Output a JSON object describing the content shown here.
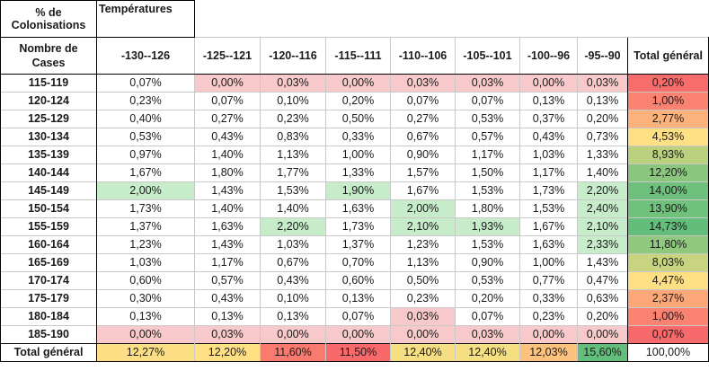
{
  "corner_label": "% de Colonisations",
  "column_field_label": "Températures",
  "row_field_label": "Nombre de Cases",
  "columns": [
    "-130--126",
    "-125--121",
    "-120--116",
    "-115--111",
    "-110--106",
    "-105--101",
    "-100--96",
    "-95--90",
    "Total général"
  ],
  "rows": [
    {
      "label": "115-119",
      "values": [
        "0,07%",
        "0,00%",
        "0,03%",
        "0,00%",
        "0,03%",
        "0,03%",
        "0,00%",
        "0,03%",
        "0,20%"
      ]
    },
    {
      "label": "120-124",
      "values": [
        "0,23%",
        "0,07%",
        "0,10%",
        "0,20%",
        "0,07%",
        "0,07%",
        "0,13%",
        "0,13%",
        "1,00%"
      ]
    },
    {
      "label": "125-129",
      "values": [
        "0,40%",
        "0,27%",
        "0,23%",
        "0,50%",
        "0,27%",
        "0,53%",
        "0,37%",
        "0,20%",
        "2,77%"
      ]
    },
    {
      "label": "130-134",
      "values": [
        "0,53%",
        "0,43%",
        "0,83%",
        "0,33%",
        "0,67%",
        "0,57%",
        "0,43%",
        "0,73%",
        "4,53%"
      ]
    },
    {
      "label": "135-139",
      "values": [
        "0,97%",
        "1,40%",
        "1,13%",
        "1,00%",
        "0,90%",
        "1,17%",
        "1,03%",
        "1,33%",
        "8,93%"
      ]
    },
    {
      "label": "140-144",
      "values": [
        "1,67%",
        "1,80%",
        "1,77%",
        "1,33%",
        "1,57%",
        "1,50%",
        "1,17%",
        "1,40%",
        "12,20%"
      ]
    },
    {
      "label": "145-149",
      "values": [
        "2,00%",
        "1,43%",
        "1,53%",
        "1,90%",
        "1,67%",
        "1,53%",
        "1,73%",
        "2,20%",
        "14,00%"
      ]
    },
    {
      "label": "150-154",
      "values": [
        "1,73%",
        "1,40%",
        "1,40%",
        "1,63%",
        "2,00%",
        "1,80%",
        "1,53%",
        "2,40%",
        "13,90%"
      ]
    },
    {
      "label": "155-159",
      "values": [
        "1,37%",
        "1,63%",
        "2,20%",
        "1,73%",
        "2,10%",
        "1,93%",
        "1,67%",
        "2,10%",
        "14,73%"
      ]
    },
    {
      "label": "160-164",
      "values": [
        "1,23%",
        "1,43%",
        "1,03%",
        "1,37%",
        "1,23%",
        "1,53%",
        "1,63%",
        "2,33%",
        "11,80%"
      ]
    },
    {
      "label": "165-169",
      "values": [
        "1,03%",
        "1,17%",
        "0,67%",
        "0,70%",
        "1,13%",
        "0,90%",
        "1,00%",
        "1,43%",
        "8,03%"
      ]
    },
    {
      "label": "170-174",
      "values": [
        "0,60%",
        "0,57%",
        "0,43%",
        "0,60%",
        "0,50%",
        "0,53%",
        "0,77%",
        "0,47%",
        "4,47%"
      ]
    },
    {
      "label": "175-179",
      "values": [
        "0,30%",
        "0,43%",
        "0,10%",
        "0,13%",
        "0,23%",
        "0,20%",
        "0,33%",
        "0,63%",
        "2,37%"
      ]
    },
    {
      "label": "180-184",
      "values": [
        "0,13%",
        "0,13%",
        "0,13%",
        "0,07%",
        "0,03%",
        "0,07%",
        "0,23%",
        "0,20%",
        "1,00%"
      ]
    },
    {
      "label": "185-190",
      "values": [
        "0,00%",
        "0,03%",
        "0,00%",
        "0,00%",
        "0,00%",
        "0,03%",
        "0,00%",
        "0,00%",
        "0,07%"
      ]
    }
  ],
  "grand_total": {
    "label": "Total général",
    "values": [
      "12,27%",
      "12,20%",
      "11,60%",
      "11,50%",
      "12,40%",
      "12,40%",
      "12,03%",
      "15,60%",
      "100,00%"
    ]
  },
  "colors": {
    "low_red": "#f8c9cb",
    "high_green": "#c6ecc9",
    "scale_red": "#f8696b",
    "scale_orange": "#fbaa77",
    "scale_yellow": "#ffe084",
    "scale_green": "#63be7b"
  }
}
